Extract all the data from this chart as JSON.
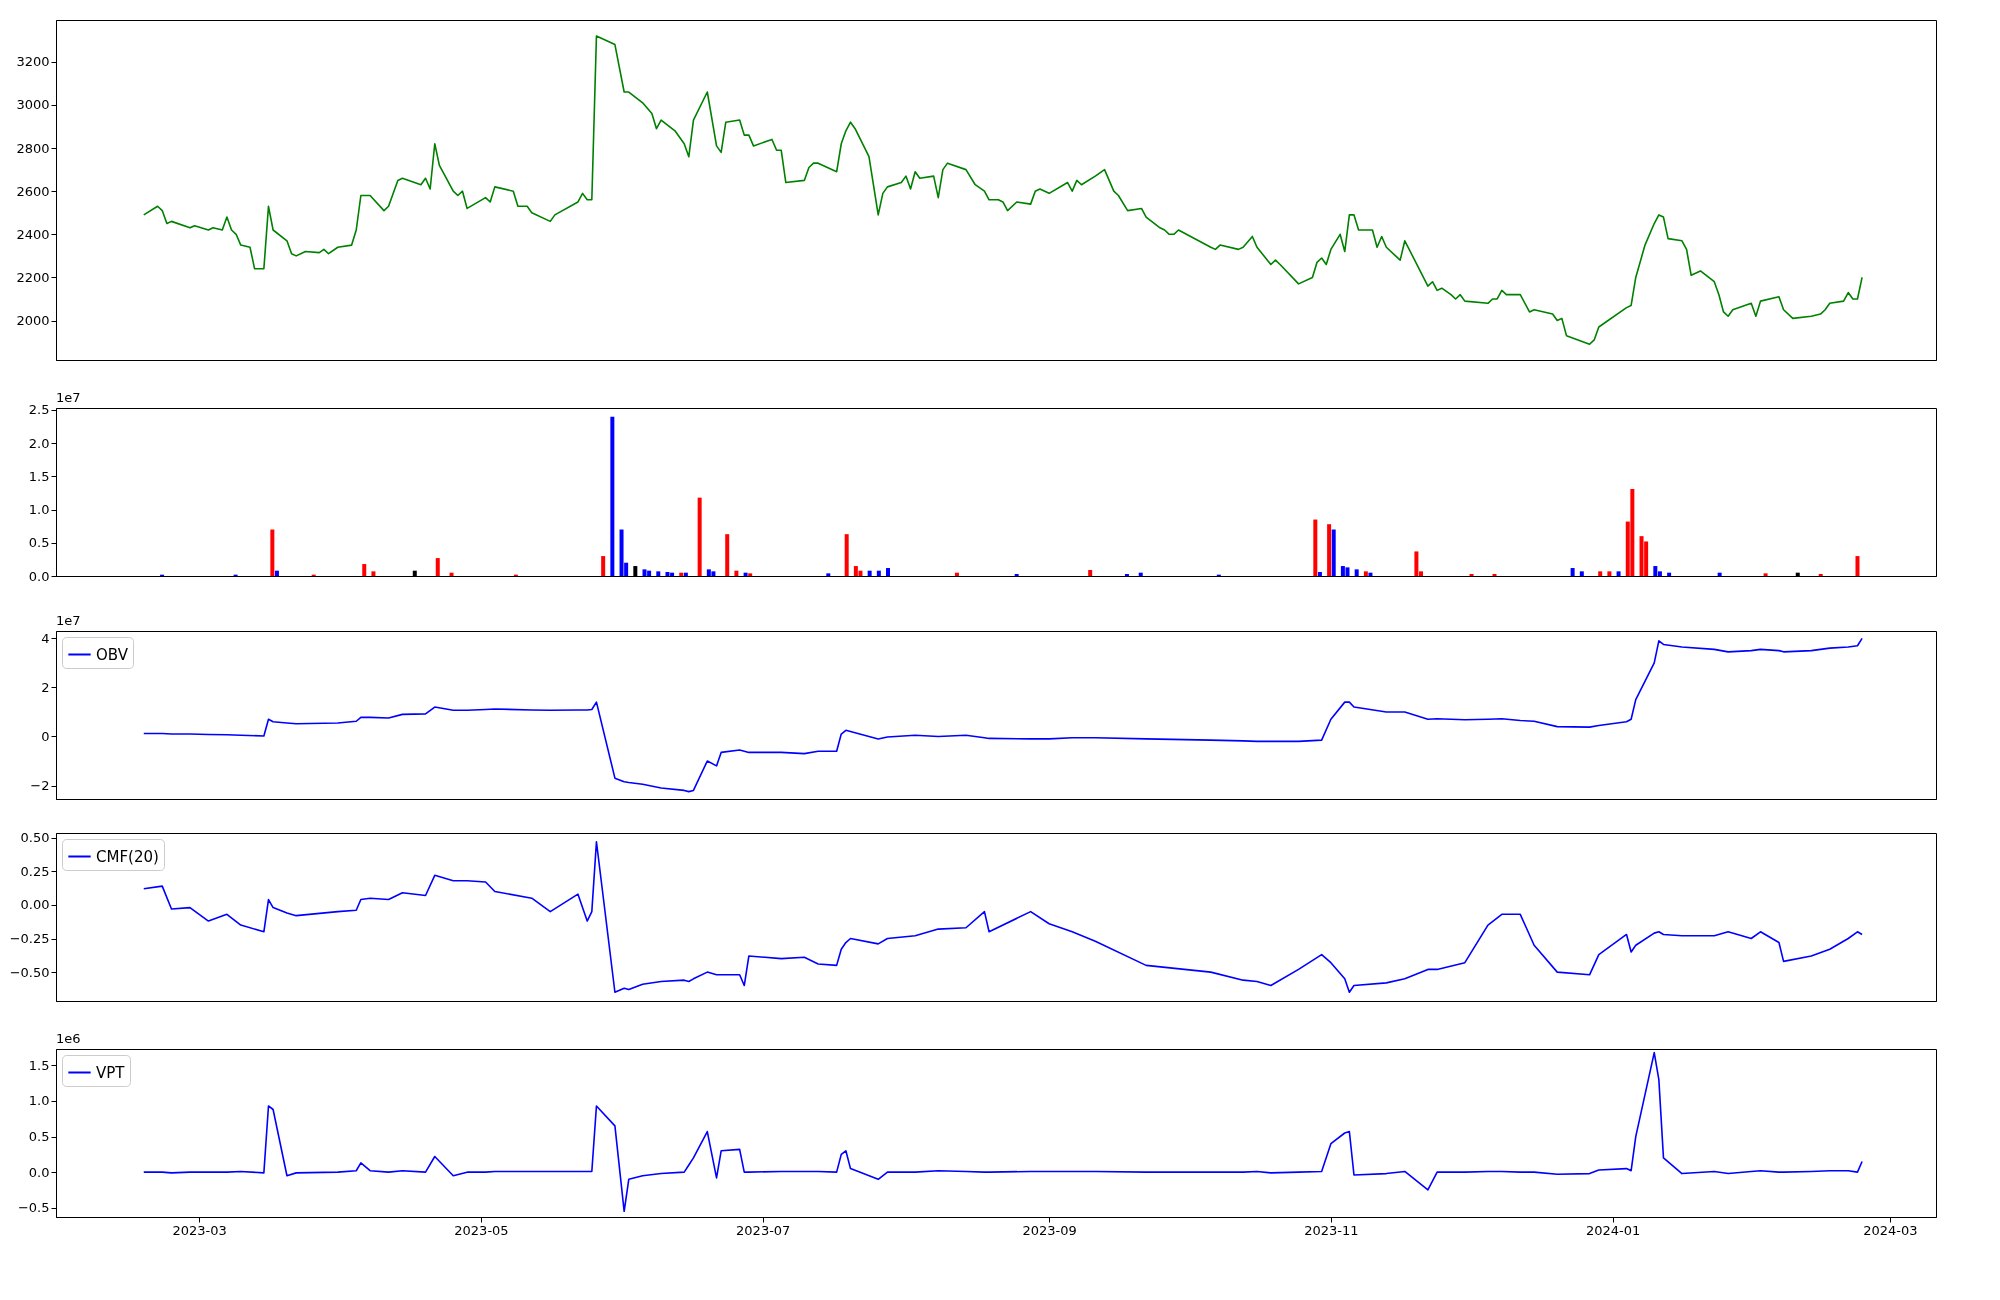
{
  "chart_data": [
    {
      "type": "line",
      "xlim": [
        "2023-01-29",
        "2024-03-11"
      ],
      "ylim": [
        1817,
        3394
      ],
      "yticks": [
        2000,
        2200,
        2400,
        2600,
        2800,
        3000,
        3200
      ],
      "tick_labels": "y",
      "x": [
        "2023-02-17",
        "2023-02-20",
        "2023-02-21",
        "2023-02-22",
        "2023-02-23",
        "2023-02-27",
        "2023-02-28",
        "2023-03-03",
        "2023-03-04",
        "2023-03-06",
        "2023-03-07",
        "2023-03-08",
        "2023-03-09",
        "2023-03-10",
        "2023-03-12",
        "2023-03-13",
        "2023-03-15",
        "2023-03-16",
        "2023-03-17",
        "2023-03-20",
        "2023-03-21",
        "2023-03-22",
        "2023-03-24",
        "2023-03-27",
        "2023-03-28",
        "2023-03-29",
        "2023-03-31",
        "2023-04-03",
        "2023-04-04",
        "2023-04-05",
        "2023-04-07",
        "2023-04-10",
        "2023-04-11",
        "2023-04-13",
        "2023-04-14",
        "2023-04-18",
        "2023-04-19",
        "2023-04-20",
        "2023-04-21",
        "2023-04-22",
        "2023-04-25",
        "2023-04-26",
        "2023-04-27",
        "2023-04-28",
        "2023-05-02",
        "2023-05-03",
        "2023-05-04",
        "2023-05-08",
        "2023-05-09",
        "2023-05-11",
        "2023-05-12",
        "2023-05-16",
        "2023-05-17",
        "2023-05-22",
        "2023-05-23",
        "2023-05-24",
        "2023-05-25",
        "2023-05-26",
        "2023-05-30",
        "2023-06-01",
        "2023-06-02",
        "2023-06-05",
        "2023-06-07",
        "2023-06-08",
        "2023-06-09",
        "2023-06-12",
        "2023-06-14",
        "2023-06-15",
        "2023-06-16",
        "2023-06-19",
        "2023-06-21",
        "2023-06-22",
        "2023-06-23",
        "2023-06-26",
        "2023-06-27",
        "2023-06-28",
        "2023-06-29",
        "2023-07-03",
        "2023-07-04",
        "2023-07-05",
        "2023-07-06",
        "2023-07-10",
        "2023-07-11",
        "2023-07-12",
        "2023-07-13",
        "2023-07-17",
        "2023-07-18",
        "2023-07-19",
        "2023-07-20",
        "2023-07-21",
        "2023-07-24",
        "2023-07-26",
        "2023-07-27",
        "2023-07-28",
        "2023-07-31",
        "2023-08-01",
        "2023-08-02",
        "2023-08-03",
        "2023-08-04",
        "2023-08-07",
        "2023-08-08",
        "2023-08-09",
        "2023-08-10",
        "2023-08-14",
        "2023-08-16",
        "2023-08-18",
        "2023-08-19",
        "2023-08-21",
        "2023-08-22",
        "2023-08-23",
        "2023-08-25",
        "2023-08-28",
        "2023-08-29",
        "2023-08-30",
        "2023-09-01",
        "2023-09-05",
        "2023-09-06",
        "2023-09-07",
        "2023-09-08",
        "2023-09-11",
        "2023-09-13",
        "2023-09-15",
        "2023-09-16",
        "2023-09-18",
        "2023-09-21",
        "2023-09-22",
        "2023-09-25",
        "2023-09-26",
        "2023-09-27",
        "2023-09-28",
        "2023-09-29",
        "2023-10-06",
        "2023-10-07",
        "2023-10-08",
        "2023-10-12",
        "2023-10-13",
        "2023-10-15",
        "2023-10-16",
        "2023-10-19",
        "2023-10-20",
        "2023-10-21",
        "2023-10-25",
        "2023-10-28",
        "2023-10-29",
        "2023-10-30",
        "2023-10-31",
        "2023-11-01",
        "2023-11-03",
        "2023-11-04",
        "2023-11-05",
        "2023-11-06",
        "2023-11-07",
        "2023-11-10",
        "2023-11-11",
        "2023-11-12",
        "2023-11-13",
        "2023-11-15",
        "2023-11-16",
        "2023-11-17",
        "2023-11-22",
        "2023-11-23",
        "2023-11-24",
        "2023-11-25",
        "2023-11-27",
        "2023-11-28",
        "2023-11-29",
        "2023-11-30",
        "2023-12-05",
        "2023-12-06",
        "2023-12-07",
        "2023-12-08",
        "2023-12-09",
        "2023-12-12",
        "2023-12-14",
        "2023-12-15",
        "2023-12-19",
        "2023-12-20",
        "2023-12-21",
        "2023-12-22",
        "2023-12-27",
        "2023-12-28",
        "2023-12-29",
        "2024-01-04",
        "2024-01-05",
        "2024-01-06",
        "2024-01-08",
        "2024-01-10",
        "2024-01-11",
        "2024-01-12",
        "2024-01-13",
        "2024-01-16",
        "2024-01-17",
        "2024-01-18",
        "2024-01-20",
        "2024-01-23",
        "2024-01-24",
        "2024-01-25",
        "2024-01-26",
        "2024-01-27",
        "2024-01-31",
        "2024-02-01",
        "2024-02-02",
        "2024-02-06",
        "2024-02-07",
        "2024-02-09",
        "2024-02-13",
        "2024-02-15",
        "2024-02-16",
        "2024-02-17",
        "2024-02-20",
        "2024-02-21",
        "2024-02-22",
        "2024-02-23",
        "2024-02-24"
      ],
      "series": [
        {
          "color": "#008000",
          "values": [
            2490,
            2530,
            2510,
            2450,
            2460,
            2430,
            2440,
            2420,
            2430,
            2420,
            2480,
            2420,
            2400,
            2350,
            2340,
            2240,
            2240,
            2530,
            2420,
            2370,
            2310,
            2300,
            2320,
            2315,
            2330,
            2310,
            2340,
            2350,
            2420,
            2580,
            2580,
            2510,
            2530,
            2650,
            2660,
            2630,
            2660,
            2610,
            2820,
            2720,
            2600,
            2580,
            2600,
            2520,
            2570,
            2550,
            2620,
            2600,
            2530,
            2530,
            2500,
            2460,
            2490,
            2550,
            2590,
            2560,
            2560,
            3320,
            3280,
            3060,
            3060,
            3010,
            2960,
            2890,
            2930,
            2880,
            2820,
            2760,
            2930,
            3060,
            2810,
            2780,
            2920,
            2930,
            2860,
            2860,
            2810,
            2840,
            2790,
            2790,
            2640,
            2650,
            2710,
            2730,
            2730,
            2690,
            2820,
            2880,
            2920,
            2890,
            2760,
            2490,
            2590,
            2620,
            2640,
            2670,
            2610,
            2690,
            2660,
            2670,
            2570,
            2700,
            2730,
            2700,
            2630,
            2600,
            2560,
            2560,
            2550,
            2510,
            2550,
            2540,
            2600,
            2610,
            2590,
            2640,
            2600,
            2650,
            2630,
            2670,
            2700,
            2600,
            2580,
            2510,
            2520,
            2480,
            2430,
            2420,
            2400,
            2400,
            2420,
            2340,
            2330,
            2350,
            2330,
            2340,
            2390,
            2340,
            2260,
            2280,
            2260,
            2170,
            2200,
            2270,
            2290,
            2260,
            2330,
            2400,
            2320,
            2490,
            2490,
            2420,
            2420,
            2340,
            2390,
            2340,
            2300,
            2280,
            2370,
            2160,
            2180,
            2140,
            2150,
            2120,
            2100,
            2120,
            2090,
            2080,
            2100,
            2100,
            2140,
            2120,
            2120,
            2040,
            2050,
            2030,
            2000,
            2010,
            1930,
            1890,
            1910,
            1970,
            2060,
            2070,
            2200,
            2350,
            2450,
            2490,
            2480,
            2380,
            2370,
            2330,
            2210,
            2230,
            2180,
            2120,
            2040,
            2020,
            2050,
            2080,
            2020,
            2090,
            2110,
            2050,
            2010,
            2020,
            2030,
            2050,
            2080,
            2090,
            2130,
            2100,
            2100,
            2200
          ]
        }
      ]
    },
    {
      "type": "bar",
      "xlim": [
        "2023-01-29",
        "2024-03-11"
      ],
      "ylim": [
        0,
        2.53
      ],
      "yticks": [
        {
          "value": 0,
          "label": "0.0"
        },
        {
          "value": 0.5,
          "label": "0.5"
        },
        {
          "value": 1,
          "label": "1.0"
        },
        {
          "value": 1.5,
          "label": "1.5"
        },
        {
          "value": 2,
          "label": "2.0"
        },
        {
          "value": 2.5,
          "label": "2.5"
        }
      ],
      "tick_labels": "y",
      "annotations": [
        "1e7"
      ],
      "x": [
        "2023-02-20",
        "2023-03-08",
        "2023-03-16",
        "2023-03-17",
        "2023-03-25",
        "2023-04-05",
        "2023-04-07",
        "2023-04-16",
        "2023-04-21",
        "2023-04-24",
        "2023-05-08",
        "2023-05-27",
        "2023-05-29",
        "2023-05-31",
        "2023-06-01",
        "2023-06-03",
        "2023-06-05",
        "2023-06-06",
        "2023-06-08",
        "2023-06-10",
        "2023-06-11",
        "2023-06-13",
        "2023-06-14",
        "2023-06-17",
        "2023-06-19",
        "2023-06-20",
        "2023-06-23",
        "2023-06-25",
        "2023-06-27",
        "2023-06-28",
        "2023-07-15",
        "2023-07-19",
        "2023-07-21",
        "2023-07-22",
        "2023-07-24",
        "2023-07-26",
        "2023-07-28",
        "2023-08-12",
        "2023-08-25",
        "2023-09-10",
        "2023-09-18",
        "2023-09-21",
        "2023-10-08",
        "2023-10-29",
        "2023-10-30",
        "2023-11-01",
        "2023-11-02",
        "2023-11-04",
        "2023-11-05",
        "2023-11-07",
        "2023-11-09",
        "2023-11-10",
        "2023-11-20",
        "2023-11-21",
        "2023-12-02",
        "2023-12-07",
        "2023-12-24",
        "2023-12-26",
        "2023-12-30",
        "2024-01-01",
        "2024-01-03",
        "2024-01-05",
        "2024-01-06",
        "2024-01-08",
        "2024-01-09",
        "2024-01-11",
        "2024-01-12",
        "2024-01-14",
        "2024-01-25",
        "2024-02-04",
        "2024-02-11",
        "2024-02-16",
        "2024-02-24"
      ],
      "values": [
        0.02,
        0.02,
        0.7,
        0.08,
        0.02,
        0.18,
        0.07,
        0.08,
        0.27,
        0.05,
        0.02,
        0.3,
        2.4,
        0.7,
        0.2,
        0.15,
        0.1,
        0.08,
        0.07,
        0.06,
        0.05,
        0.05,
        0.05,
        1.18,
        0.1,
        0.07,
        0.63,
        0.08,
        0.05,
        0.04,
        0.04,
        0.63,
        0.15,
        0.08,
        0.08,
        0.08,
        0.12,
        0.05,
        0.03,
        0.09,
        0.03,
        0.05,
        0.02,
        0.85,
        0.06,
        0.78,
        0.7,
        0.15,
        0.13,
        0.1,
        0.07,
        0.05,
        0.37,
        0.07,
        0.03,
        0.03,
        0.12,
        0.07,
        0.07,
        0.07,
        0.07,
        0.82,
        1.31,
        0.6,
        0.52,
        0.15,
        0.07,
        0.05,
        0.05,
        0.04,
        0.05,
        0.03,
        0.3
      ],
      "colors": [
        "#0000ff",
        "#0000ff",
        "#ff0000",
        "#0000ff",
        "#ff0000",
        "#ff0000",
        "#ff0000",
        "#000000",
        "#ff0000",
        "#ff0000",
        "#ff0000",
        "#ff0000",
        "#0000ff",
        "#0000ff",
        "#0000ff",
        "#000000",
        "#0000ff",
        "#0000ff",
        "#0000ff",
        "#0000ff",
        "#0000ff",
        "#ff0000",
        "#0000ff",
        "#ff0000",
        "#0000ff",
        "#0000ff",
        "#ff0000",
        "#ff0000",
        "#0000ff",
        "#ff0000",
        "#0000ff",
        "#ff0000",
        "#ff0000",
        "#ff0000",
        "#0000ff",
        "#0000ff",
        "#0000ff",
        "#ff0000",
        "#0000ff",
        "#ff0000",
        "#0000ff",
        "#0000ff",
        "#0000ff",
        "#ff0000",
        "#0000ff",
        "#ff0000",
        "#0000ff",
        "#0000ff",
        "#0000ff",
        "#0000ff",
        "#ff0000",
        "#0000ff",
        "#ff0000",
        "#ff0000",
        "#ff0000",
        "#ff0000",
        "#0000ff",
        "#0000ff",
        "#ff0000",
        "#ff0000",
        "#0000ff",
        "#ff0000",
        "#ff0000",
        "#ff0000",
        "#ff0000",
        "#0000ff",
        "#0000ff",
        "#0000ff",
        "#0000ff",
        "#ff0000",
        "#000000",
        "#ff0000",
        "#ff0000"
      ]
    },
    {
      "type": "line",
      "xlim": [
        "2023-01-29",
        "2024-03-11"
      ],
      "ylim": [
        -2.55,
        4.3
      ],
      "yticks": [
        {
          "value": -2,
          "label": "−2"
        },
        0,
        2,
        4
      ],
      "tick_labels": "y",
      "legend": "top left",
      "annotations": [
        "1e7"
      ],
      "x": [
        "2023-02-17",
        "2023-02-21",
        "2023-02-23",
        "2023-02-27",
        "2023-03-03",
        "2023-03-07",
        "2023-03-10",
        "2023-03-15",
        "2023-03-16",
        "2023-03-17",
        "2023-03-20",
        "2023-03-22",
        "2023-03-31",
        "2023-04-04",
        "2023-04-05",
        "2023-04-07",
        "2023-04-11",
        "2023-04-14",
        "2023-04-19",
        "2023-04-21",
        "2023-04-25",
        "2023-04-28",
        "2023-05-02",
        "2023-05-04",
        "2023-05-12",
        "2023-05-16",
        "2023-05-22",
        "2023-05-24",
        "2023-05-25",
        "2023-05-26",
        "2023-05-30",
        "2023-06-01",
        "2023-06-02",
        "2023-06-05",
        "2023-06-09",
        "2023-06-14",
        "2023-06-15",
        "2023-06-16",
        "2023-06-19",
        "2023-06-21",
        "2023-06-22",
        "2023-06-26",
        "2023-06-27",
        "2023-06-28",
        "2023-07-05",
        "2023-07-10",
        "2023-07-13",
        "2023-07-17",
        "2023-07-18",
        "2023-07-19",
        "2023-07-20",
        "2023-07-26",
        "2023-07-28",
        "2023-08-03",
        "2023-08-08",
        "2023-08-14",
        "2023-08-18",
        "2023-08-19",
        "2023-08-28",
        "2023-09-01",
        "2023-09-06",
        "2023-09-11",
        "2023-09-22",
        "2023-10-06",
        "2023-10-13",
        "2023-10-16",
        "2023-10-19",
        "2023-10-25",
        "2023-10-30",
        "2023-11-01",
        "2023-11-04",
        "2023-11-05",
        "2023-11-06",
        "2023-11-13",
        "2023-11-17",
        "2023-11-22",
        "2023-11-24",
        "2023-11-30",
        "2023-12-05",
        "2023-12-08",
        "2023-12-12",
        "2023-12-15",
        "2023-12-20",
        "2023-12-27",
        "2023-12-29",
        "2024-01-04",
        "2024-01-05",
        "2024-01-06",
        "2024-01-10",
        "2024-01-11",
        "2024-01-12",
        "2024-01-16",
        "2024-01-23",
        "2024-01-26",
        "2024-01-31",
        "2024-02-02",
        "2024-02-06",
        "2024-02-07",
        "2024-02-13",
        "2024-02-17",
        "2024-02-21",
        "2024-02-23",
        "2024-02-24"
      ],
      "series": [
        {
          "name": "OBV",
          "color": "#0000ff",
          "values": [
            0.12,
            0.12,
            0.1,
            0.1,
            0.08,
            0.07,
            0.05,
            0.02,
            0.7,
            0.6,
            0.55,
            0.52,
            0.55,
            0.62,
            0.78,
            0.78,
            0.75,
            0.9,
            0.92,
            1.2,
            1.07,
            1.07,
            1.1,
            1.12,
            1.08,
            1.07,
            1.08,
            1.08,
            1.1,
            1.4,
            -1.7,
            -1.85,
            -1.88,
            -1.95,
            -2.1,
            -2.2,
            -2.25,
            -2.2,
            -1.0,
            -1.2,
            -0.65,
            -0.55,
            -0.6,
            -0.65,
            -0.65,
            -0.7,
            -0.6,
            -0.6,
            0.1,
            0.25,
            0.2,
            -0.1,
            -0.02,
            0.05,
            0.0,
            0.05,
            -0.05,
            -0.08,
            -0.1,
            -0.1,
            -0.05,
            -0.05,
            -0.1,
            -0.15,
            -0.18,
            -0.2,
            -0.2,
            -0.2,
            -0.15,
            0.7,
            1.4,
            1.4,
            1.2,
            1.0,
            1.0,
            0.7,
            0.72,
            0.68,
            0.7,
            0.72,
            0.65,
            0.62,
            0.4,
            0.38,
            0.45,
            0.6,
            0.7,
            1.5,
            3.0,
            3.9,
            3.75,
            3.65,
            3.55,
            3.45,
            3.5,
            3.55,
            3.5,
            3.45,
            3.5,
            3.6,
            3.65,
            3.7,
            4.0
          ]
        }
      ]
    },
    {
      "type": "line",
      "xlim": [
        "2023-01-29",
        "2024-03-11"
      ],
      "ylim": [
        -0.715,
        0.535
      ],
      "yticks": [
        {
          "value": -0.5,
          "label": "−0.50"
        },
        {
          "value": -0.25,
          "label": "−0.25"
        },
        {
          "value": 0,
          "label": "0.00"
        },
        {
          "value": 0.25,
          "label": "0.25"
        },
        {
          "value": 0.5,
          "label": "0.50"
        }
      ],
      "tick_labels": "y",
      "legend": "top left",
      "x": [
        "2023-02-17",
        "2023-02-21",
        "2023-02-23",
        "2023-02-27",
        "2023-03-03",
        "2023-03-07",
        "2023-03-10",
        "2023-03-15",
        "2023-03-16",
        "2023-03-17",
        "2023-03-20",
        "2023-03-22",
        "2023-03-31",
        "2023-04-04",
        "2023-04-05",
        "2023-04-07",
        "2023-04-11",
        "2023-04-14",
        "2023-04-19",
        "2023-04-21",
        "2023-04-25",
        "2023-04-28",
        "2023-05-02",
        "2023-05-04",
        "2023-05-12",
        "2023-05-16",
        "2023-05-22",
        "2023-05-24",
        "2023-05-25",
        "2023-05-26",
        "2023-05-30",
        "2023-06-01",
        "2023-06-02",
        "2023-06-05",
        "2023-06-09",
        "2023-06-14",
        "2023-06-15",
        "2023-06-16",
        "2023-06-19",
        "2023-06-21",
        "2023-06-22",
        "2023-06-26",
        "2023-06-27",
        "2023-06-28",
        "2023-07-05",
        "2023-07-10",
        "2023-07-13",
        "2023-07-17",
        "2023-07-18",
        "2023-07-19",
        "2023-07-20",
        "2023-07-26",
        "2023-07-28",
        "2023-08-03",
        "2023-08-08",
        "2023-08-14",
        "2023-08-18",
        "2023-08-19",
        "2023-08-28",
        "2023-09-01",
        "2023-09-06",
        "2023-09-11",
        "2023-09-22",
        "2023-10-06",
        "2023-10-13",
        "2023-10-16",
        "2023-10-19",
        "2023-10-25",
        "2023-10-30",
        "2023-11-01",
        "2023-11-04",
        "2023-11-05",
        "2023-11-06",
        "2023-11-13",
        "2023-11-17",
        "2023-11-22",
        "2023-11-24",
        "2023-11-30",
        "2023-12-05",
        "2023-12-08",
        "2023-12-12",
        "2023-12-15",
        "2023-12-20",
        "2023-12-27",
        "2023-12-29",
        "2024-01-04",
        "2024-01-05",
        "2024-01-06",
        "2024-01-10",
        "2024-01-11",
        "2024-01-12",
        "2024-01-16",
        "2024-01-23",
        "2024-01-26",
        "2024-01-31",
        "2024-02-02",
        "2024-02-06",
        "2024-02-07",
        "2024-02-13",
        "2024-02-17",
        "2024-02-21",
        "2024-02-23",
        "2024-02-24"
      ],
      "series": [
        {
          "name": "CMF(20)",
          "color": "#0000ff",
          "values": [
            0.12,
            0.14,
            -0.03,
            -0.02,
            -0.12,
            -0.07,
            -0.15,
            -0.2,
            0.04,
            -0.02,
            -0.06,
            -0.08,
            -0.05,
            -0.04,
            0.04,
            0.05,
            0.04,
            0.09,
            0.07,
            0.22,
            0.18,
            0.18,
            0.17,
            0.1,
            0.05,
            -0.05,
            0.08,
            -0.12,
            -0.05,
            0.47,
            -0.65,
            -0.62,
            -0.63,
            -0.59,
            -0.57,
            -0.56,
            -0.57,
            -0.55,
            -0.5,
            -0.52,
            -0.52,
            -0.52,
            -0.6,
            -0.38,
            -0.4,
            -0.39,
            -0.44,
            -0.45,
            -0.33,
            -0.28,
            -0.25,
            -0.29,
            -0.25,
            -0.23,
            -0.18,
            -0.17,
            -0.05,
            -0.2,
            -0.05,
            -0.14,
            -0.2,
            -0.27,
            -0.45,
            -0.5,
            -0.56,
            -0.57,
            -0.6,
            -0.48,
            -0.37,
            -0.43,
            -0.55,
            -0.65,
            -0.6,
            -0.58,
            -0.55,
            -0.48,
            -0.48,
            -0.43,
            -0.15,
            -0.07,
            -0.07,
            -0.3,
            -0.5,
            -0.52,
            -0.37,
            -0.22,
            -0.35,
            -0.3,
            -0.21,
            -0.2,
            -0.22,
            -0.23,
            -0.23,
            -0.2,
            -0.25,
            -0.2,
            -0.28,
            -0.42,
            -0.38,
            -0.33,
            -0.25,
            -0.2,
            -0.22
          ]
        }
      ]
    },
    {
      "type": "line",
      "xlim": [
        "2023-01-29",
        "2024-03-11"
      ],
      "ylim": [
        -0.63,
        1.73
      ],
      "yticks": [
        {
          "value": -0.5,
          "label": "−0.5"
        },
        {
          "value": 0,
          "label": "0.0"
        },
        {
          "value": 0.5,
          "label": "0.5"
        },
        {
          "value": 1,
          "label": "1.0"
        },
        {
          "value": 1.5,
          "label": "1.5"
        }
      ],
      "xticks": [
        {
          "value": "2023-03-01",
          "label": "2023-03"
        },
        {
          "value": "2023-05-01",
          "label": "2023-05"
        },
        {
          "value": "2023-07-01",
          "label": "2023-07"
        },
        {
          "value": "2023-09-01",
          "label": "2023-09"
        },
        {
          "value": "2023-11-01",
          "label": "2023-11"
        },
        {
          "value": "2024-01-01",
          "label": "2024-01"
        },
        {
          "value": "2024-03-01",
          "label": "2024-03"
        }
      ],
      "legend": "top left",
      "annotations": [
        "1e6"
      ],
      "x": [
        "2023-02-17",
        "2023-02-21",
        "2023-02-23",
        "2023-02-27",
        "2023-03-03",
        "2023-03-07",
        "2023-03-10",
        "2023-03-15",
        "2023-03-16",
        "2023-03-17",
        "2023-03-20",
        "2023-03-22",
        "2023-03-31",
        "2023-04-04",
        "2023-04-05",
        "2023-04-07",
        "2023-04-11",
        "2023-04-14",
        "2023-04-19",
        "2023-04-21",
        "2023-04-25",
        "2023-04-28",
        "2023-05-02",
        "2023-05-04",
        "2023-05-12",
        "2023-05-16",
        "2023-05-22",
        "2023-05-24",
        "2023-05-25",
        "2023-05-26",
        "2023-05-30",
        "2023-06-01",
        "2023-06-02",
        "2023-06-05",
        "2023-06-09",
        "2023-06-14",
        "2023-06-15",
        "2023-06-16",
        "2023-06-19",
        "2023-06-21",
        "2023-06-22",
        "2023-06-26",
        "2023-06-27",
        "2023-06-28",
        "2023-07-05",
        "2023-07-10",
        "2023-07-13",
        "2023-07-17",
        "2023-07-18",
        "2023-07-19",
        "2023-07-20",
        "2023-07-26",
        "2023-07-28",
        "2023-08-03",
        "2023-08-08",
        "2023-08-14",
        "2023-08-18",
        "2023-08-19",
        "2023-08-28",
        "2023-09-01",
        "2023-09-06",
        "2023-09-11",
        "2023-09-22",
        "2023-10-06",
        "2023-10-13",
        "2023-10-16",
        "2023-10-19",
        "2023-10-25",
        "2023-10-30",
        "2023-11-01",
        "2023-11-04",
        "2023-11-05",
        "2023-11-06",
        "2023-11-13",
        "2023-11-17",
        "2023-11-22",
        "2023-11-24",
        "2023-11-30",
        "2023-12-05",
        "2023-12-08",
        "2023-12-12",
        "2023-12-15",
        "2023-12-20",
        "2023-12-27",
        "2023-12-29",
        "2024-01-04",
        "2024-01-05",
        "2024-01-06",
        "2024-01-10",
        "2024-01-11",
        "2024-01-12",
        "2024-01-16",
        "2024-01-23",
        "2024-01-26",
        "2024-01-31",
        "2024-02-02",
        "2024-02-06",
        "2024-02-07",
        "2024-02-13",
        "2024-02-17",
        "2024-02-21",
        "2024-02-23",
        "2024-02-24"
      ],
      "series": [
        {
          "name": "VPT",
          "color": "#0000ff",
          "values": [
            0.0,
            0.0,
            -0.01,
            0.0,
            0.0,
            0.0,
            0.01,
            -0.01,
            0.93,
            0.88,
            -0.05,
            -0.01,
            0.0,
            0.02,
            0.13,
            0.02,
            0.0,
            0.02,
            0.0,
            0.22,
            -0.05,
            0.0,
            0.0,
            0.01,
            0.01,
            0.01,
            0.01,
            0.01,
            0.01,
            0.93,
            0.65,
            -0.55,
            -0.1,
            -0.05,
            -0.02,
            0.0,
            0.1,
            0.2,
            0.57,
            -0.08,
            0.3,
            0.32,
            0.0,
            0.0,
            0.01,
            0.01,
            0.01,
            0.0,
            0.25,
            0.3,
            0.05,
            -0.1,
            0.0,
            0.0,
            0.02,
            0.01,
            0.0,
            0.0,
            0.01,
            0.01,
            0.01,
            0.01,
            0.0,
            0.0,
            0.0,
            0.01,
            -0.01,
            0.0,
            0.01,
            0.4,
            0.55,
            0.57,
            -0.04,
            -0.02,
            0.01,
            -0.25,
            0.0,
            0.0,
            0.01,
            0.01,
            0.0,
            0.0,
            -0.03,
            -0.02,
            0.03,
            0.05,
            0.02,
            0.5,
            1.68,
            1.3,
            0.2,
            -0.02,
            0.01,
            -0.02,
            0.01,
            0.02,
            0.0,
            0.0,
            0.01,
            0.02,
            0.02,
            0.0,
            0.15
          ]
        }
      ]
    }
  ]
}
